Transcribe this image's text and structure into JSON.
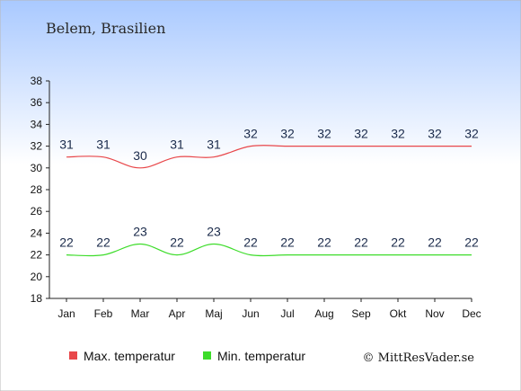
{
  "title": "Belem, Brasilien",
  "credit": "© MittResVader.se",
  "chart_data": {
    "type": "line",
    "categories": [
      "Jan",
      "Feb",
      "Mar",
      "Apr",
      "Maj",
      "Jun",
      "Jul",
      "Aug",
      "Sep",
      "Okt",
      "Nov",
      "Dec"
    ],
    "series": [
      {
        "name": "Max. temperatur",
        "color": "#e8474a",
        "values": [
          31,
          31,
          30,
          31,
          31,
          32,
          32,
          32,
          32,
          32,
          32,
          32
        ]
      },
      {
        "name": "Min. temperatur",
        "color": "#3ddc2a",
        "values": [
          22,
          22,
          23,
          22,
          23,
          22,
          22,
          22,
          22,
          22,
          22,
          22
        ]
      }
    ],
    "ylim": [
      18,
      38
    ],
    "yticks": [
      18,
      20,
      22,
      24,
      26,
      28,
      30,
      32,
      34,
      36,
      38
    ],
    "grid": false,
    "legend": "bottom"
  }
}
